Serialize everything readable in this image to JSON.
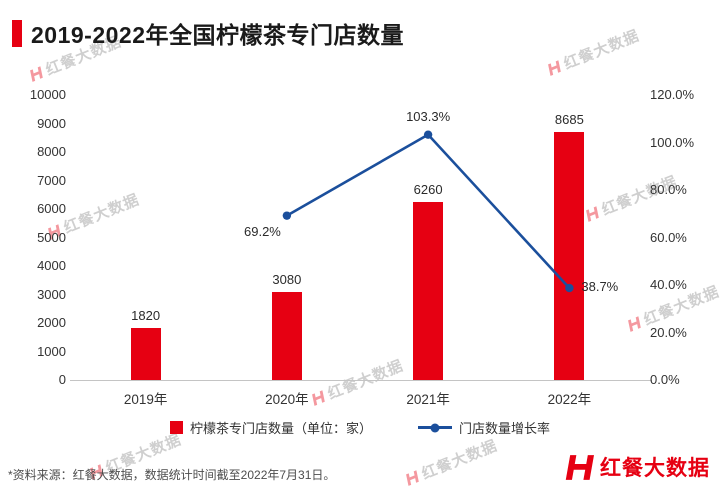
{
  "title": "2019-2022年全国柠檬茶专门店数量",
  "chart_data": {
    "type": "bar",
    "subtype": "bar+line combo",
    "categories": [
      "2019年",
      "2020年",
      "2021年",
      "2022年"
    ],
    "series": [
      {
        "name": "柠檬茶专门店数量（单位：家）",
        "chart_type": "bar",
        "axis": "left",
        "values": [
          1820,
          3080,
          6260,
          8685
        ],
        "labels": [
          "1820",
          "3080",
          "6260",
          "8685"
        ],
        "color": "#e60012"
      },
      {
        "name": "门店数量增长率",
        "chart_type": "line",
        "axis": "right",
        "values": [
          null,
          69.2,
          103.3,
          38.7
        ],
        "labels": [
          null,
          "69.2%",
          "103.3%",
          "38.7%"
        ],
        "color": "#1b4f9c"
      }
    ],
    "left_axis": {
      "min": 0,
      "max": 10000,
      "step": 1000,
      "ticks": [
        "0",
        "1000",
        "2000",
        "3000",
        "4000",
        "5000",
        "6000",
        "7000",
        "8000",
        "9000",
        "10000"
      ]
    },
    "right_axis": {
      "min": 0,
      "max": 120,
      "step": 20,
      "ticks": [
        "0.0%",
        "20.0%",
        "40.0%",
        "60.0%",
        "80.0%",
        "100.0%",
        "120.0%"
      ]
    },
    "grid": false,
    "legend_position": "bottom"
  },
  "legend": {
    "bar_label": "柠檬茶专门店数量（单位：家）",
    "line_label": "门店数量增长率"
  },
  "footnote": "*资料来源：红餐大数据，数据统计时间截至2022年7月31日。",
  "logo_text": "红餐大数据",
  "watermark_text": "红餐大数据",
  "colors": {
    "bar": "#e60012",
    "line": "#1b4f9c",
    "title": "#1a1a1a",
    "footnote": "#4d4d4d"
  }
}
